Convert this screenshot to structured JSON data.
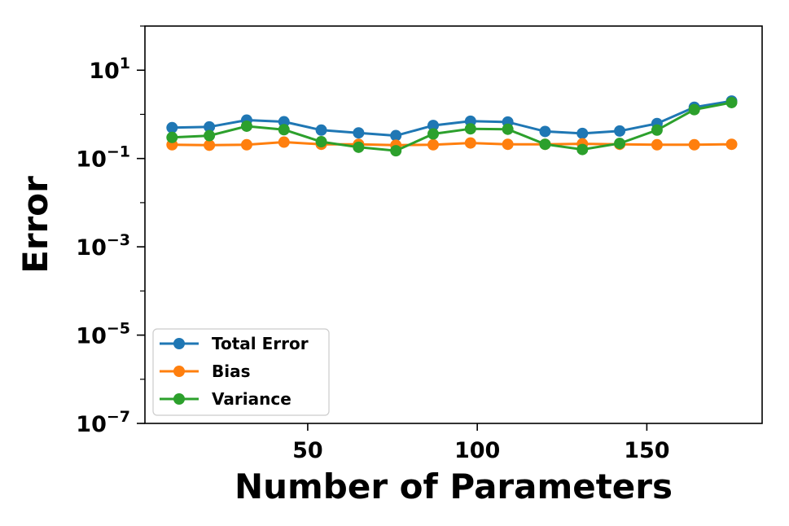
{
  "chart_data": {
    "type": "line",
    "title": "",
    "xlabel": "Number of Parameters",
    "ylabel": "Error",
    "yscale": "log",
    "xlim": [
      2,
      184
    ],
    "ylim": [
      1e-07,
      100
    ],
    "xticks": [
      50,
      100,
      150
    ],
    "yticks": [
      {
        "base": "10",
        "exp": "1",
        "value": 10
      },
      {
        "base": "10",
        "exp": "−1",
        "value": 0.1
      },
      {
        "base": "10",
        "exp": "−3",
        "value": 0.001
      },
      {
        "base": "10",
        "exp": "−5",
        "value": 1e-05
      },
      {
        "base": "10",
        "exp": "−7",
        "value": 1e-07
      }
    ],
    "x": [
      10,
      21,
      32,
      43,
      54,
      65,
      76,
      87,
      98,
      109,
      120,
      131,
      142,
      153,
      164,
      175
    ],
    "series": [
      {
        "name": "Total Error",
        "color": "#1f77b4",
        "values": [
          0.5,
          0.52,
          0.74,
          0.68,
          0.44,
          0.38,
          0.33,
          0.56,
          0.7,
          0.67,
          0.41,
          0.37,
          0.42,
          0.62,
          1.45,
          2.0
        ]
      },
      {
        "name": "Bias",
        "color": "#ff7f0e",
        "values": [
          0.205,
          0.2,
          0.205,
          0.235,
          0.21,
          0.21,
          0.2,
          0.205,
          0.225,
          0.21,
          0.21,
          0.215,
          0.21,
          0.205,
          0.205,
          0.21
        ]
      },
      {
        "name": "Variance",
        "color": "#2ca02c",
        "values": [
          0.3,
          0.33,
          0.54,
          0.45,
          0.24,
          0.18,
          0.15,
          0.36,
          0.47,
          0.46,
          0.21,
          0.16,
          0.22,
          0.44,
          1.28,
          1.85
        ]
      }
    ],
    "grid": false,
    "legend_position": "lower-left"
  }
}
